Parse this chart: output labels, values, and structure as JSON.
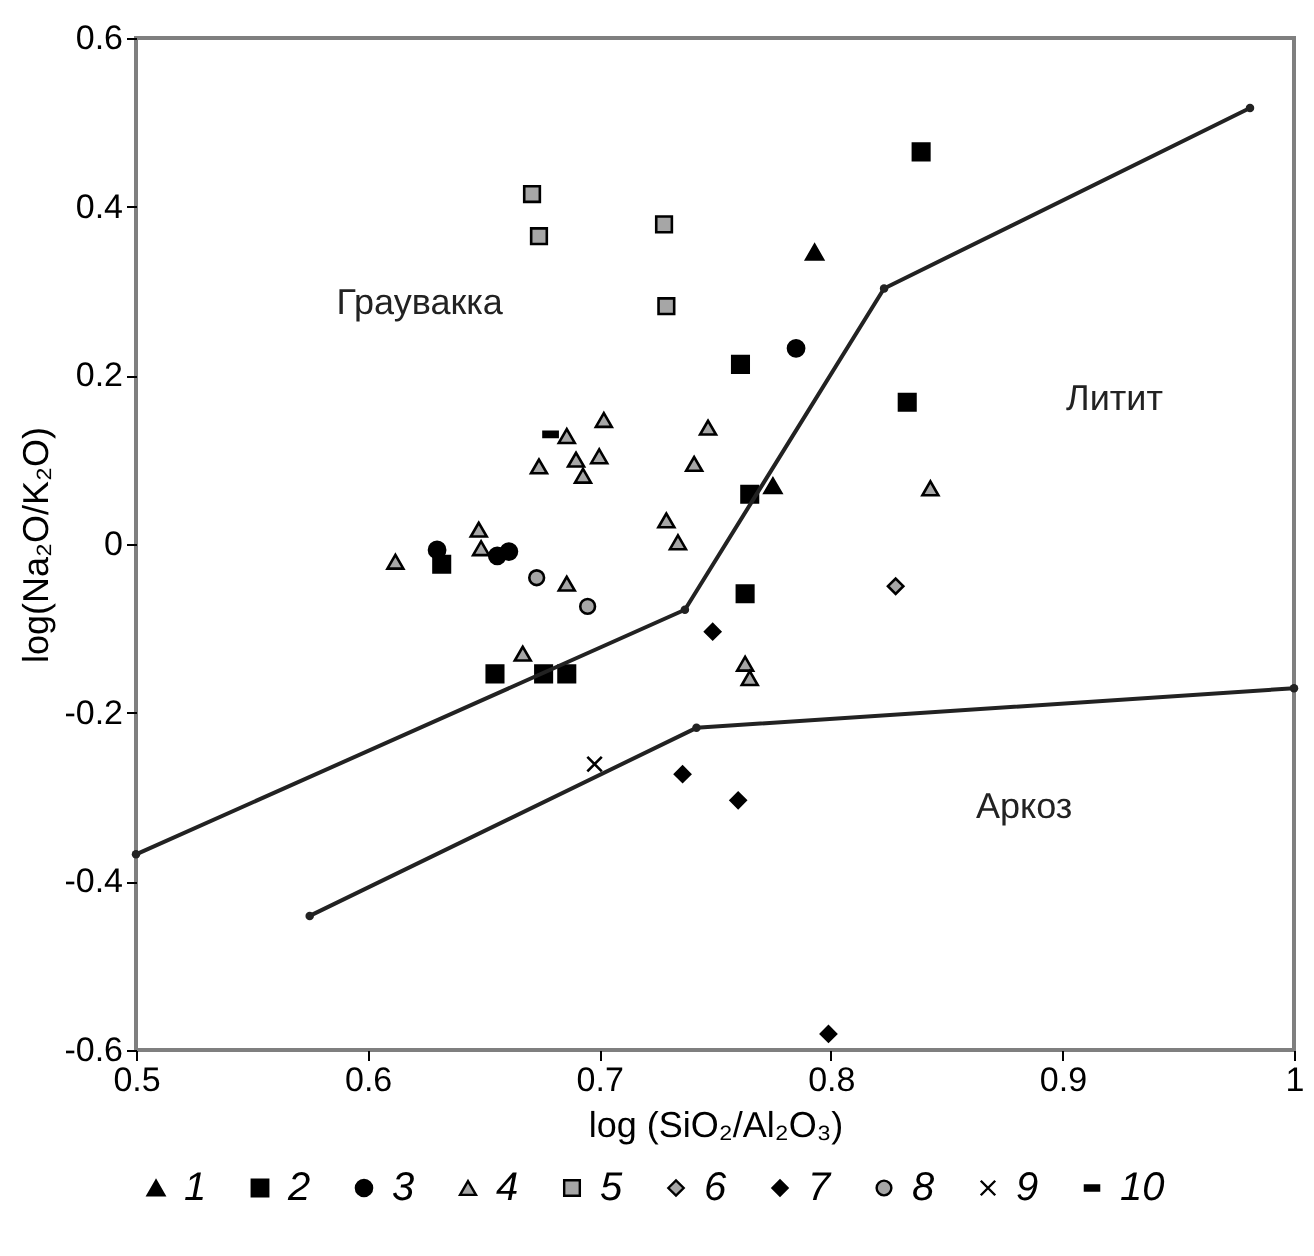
{
  "chart_data": {
    "type": "scatter",
    "xlabel": "log (SiO₂/Al₂O₃)",
    "ylabel": "log(Na₂O/K₂O)",
    "xlim": [
      0.5,
      1
    ],
    "ylim": [
      -0.6,
      0.6
    ],
    "xticks": [
      0.5,
      0.6,
      0.7,
      0.8,
      0.9,
      1
    ],
    "yticks": [
      -0.6,
      -0.4,
      -0.2,
      0,
      0.2,
      0.4,
      0.6
    ],
    "legend": "bottom",
    "series": [
      {
        "name": "1",
        "color": "#000000",
        "marker": "triangle",
        "x": [
          0.793,
          0.775
        ],
        "values": [
          0.346,
          0.069
        ]
      },
      {
        "name": "2",
        "color": "#000000",
        "marker": "square",
        "x": [
          0.839,
          0.761,
          0.833,
          0.765,
          0.763,
          0.632,
          0.655,
          0.676,
          0.686
        ],
        "values": [
          0.465,
          0.213,
          0.168,
          0.059,
          -0.059,
          -0.024,
          -0.154,
          -0.154,
          -0.154
        ]
      },
      {
        "name": "3",
        "color": "#000000",
        "marker": "circle",
        "x": [
          0.63,
          0.656,
          0.661,
          0.785
        ],
        "values": [
          -0.007,
          -0.014,
          -0.009,
          0.232
        ]
      },
      {
        "name": "4",
        "color": "#a6a6a6",
        "marker": "triangle",
        "x": [
          0.674,
          0.686,
          0.702,
          0.69,
          0.7,
          0.693,
          0.741,
          0.747,
          0.729,
          0.734,
          0.612,
          0.648,
          0.649,
          0.686,
          0.667,
          0.763,
          0.765,
          0.843
        ],
        "values": [
          0.092,
          0.128,
          0.147,
          0.1,
          0.104,
          0.081,
          0.095,
          0.138,
          0.028,
          0.002,
          -0.021,
          0.017,
          -0.005,
          -0.047,
          -0.13,
          -0.142,
          -0.159,
          0.066
        ]
      },
      {
        "name": "5",
        "color": "#a6a6a6",
        "marker": "square",
        "x": [
          0.671,
          0.674,
          0.728,
          0.729
        ],
        "values": [
          0.415,
          0.365,
          0.379,
          0.282
        ]
      },
      {
        "name": "6",
        "color": "#a6a6a6",
        "marker": "diamond",
        "x": [
          0.828
        ],
        "values": [
          -0.05
        ]
      },
      {
        "name": "7",
        "color": "#000000",
        "marker": "diamond",
        "x": [
          0.749,
          0.736,
          0.76,
          0.799
        ],
        "values": [
          -0.104,
          -0.273,
          -0.304,
          -0.581
        ]
      },
      {
        "name": "8",
        "color": "#a6a6a6",
        "marker": "circle",
        "x": [
          0.673,
          0.695
        ],
        "values": [
          -0.04,
          -0.074
        ]
      },
      {
        "name": "9",
        "color": "#000000",
        "marker": "cross",
        "x": [
          0.698
        ],
        "values": [
          -0.261
        ]
      },
      {
        "name": "10",
        "color": "#000000",
        "x": [
          0.679
        ],
        "values": [
          0.13
        ]
      },
      {
        "type": "line",
        "color": "#222222",
        "marker": "circle",
        "x": [
          0.5,
          0.737,
          0.823,
          0.981
        ],
        "values": [
          -0.368,
          -0.078,
          0.303,
          0.517
        ]
      },
      {
        "type": "line",
        "color": "#222222",
        "marker": "circle",
        "x": [
          0.575,
          0.742,
          1
        ],
        "values": [
          -0.441,
          -0.218,
          -0.171
        ]
      }
    ],
    "annotations": [
      "Граувакка",
      "Литит",
      "Аркоз"
    ]
  }
}
